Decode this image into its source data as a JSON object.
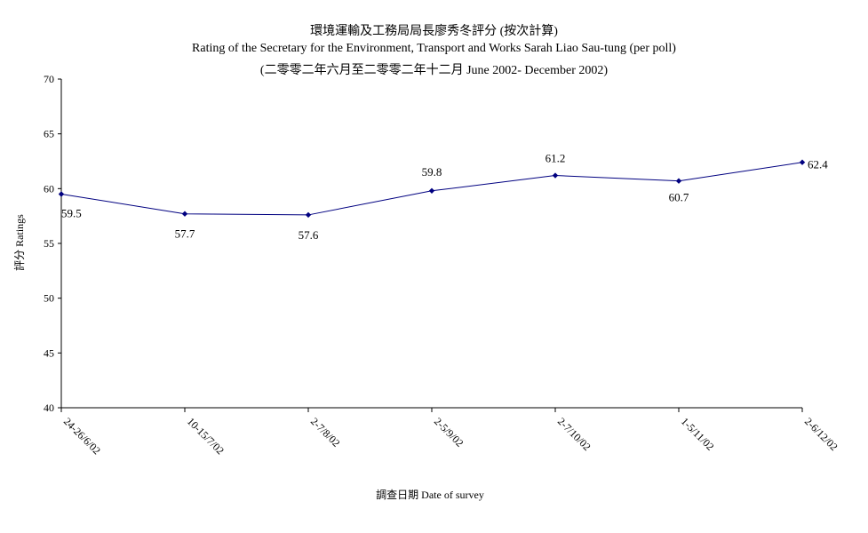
{
  "chart_data": {
    "type": "line",
    "title": "環境運輸及工務局局長廖秀冬評分 (按次計算)",
    "subtitle": "Rating of the Secretary for the Environment, Transport and Works Sarah Liao Sau-tung  (per poll)",
    "subtitle2": "(二零零二年六月至二零零二年十二月 June 2002- December 2002)",
    "xlabel": "調查日期 Date of survey",
    "ylabel": "評分 Ratings",
    "ylim": [
      40,
      70
    ],
    "yticks": [
      40,
      45,
      50,
      55,
      60,
      65,
      70
    ],
    "categories": [
      "24-26/6/02",
      "10-15/7/02",
      "2-7/8/02",
      "2-5/9/02",
      "2-7/10/02",
      "1-5/11/02",
      "2-6/12/02"
    ],
    "series": [
      {
        "values": [
          59.5,
          57.7,
          57.6,
          59.8,
          61.2,
          60.7,
          62.4
        ],
        "labels": [
          "59.5",
          "57.7",
          "57.6",
          "59.8",
          "61.2",
          "60.7",
          "62.4"
        ]
      }
    ],
    "grid": false,
    "legend": "none",
    "line_color": "#000080"
  }
}
